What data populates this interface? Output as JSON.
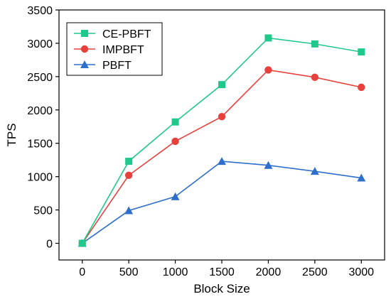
{
  "chart_data": {
    "type": "line",
    "xlabel": "Block Size",
    "ylabel": "TPS",
    "x": [
      0,
      500,
      1000,
      1500,
      2000,
      2500,
      3000
    ],
    "xlim": [
      -250,
      3250
    ],
    "ylim": [
      -250,
      3500
    ],
    "xticks": [
      0,
      500,
      1000,
      1500,
      2000,
      2500,
      3000
    ],
    "yticks": [
      0,
      500,
      1000,
      1500,
      2000,
      2500,
      3000,
      3500
    ],
    "grid": false,
    "legend_position": "top-left",
    "series": [
      {
        "name": "CE-PBFT",
        "values": [
          0,
          1230,
          1820,
          2380,
          3080,
          2990,
          2870
        ],
        "color": "#1fc98b",
        "marker": "square"
      },
      {
        "name": "IMPBFT",
        "values": [
          0,
          1020,
          1530,
          1900,
          2600,
          2490,
          2340
        ],
        "color": "#e8403c",
        "marker": "circle"
      },
      {
        "name": "PBFT",
        "values": [
          0,
          490,
          700,
          1230,
          1170,
          1080,
          980
        ],
        "color": "#2f6fcc",
        "marker": "triangle"
      }
    ]
  }
}
